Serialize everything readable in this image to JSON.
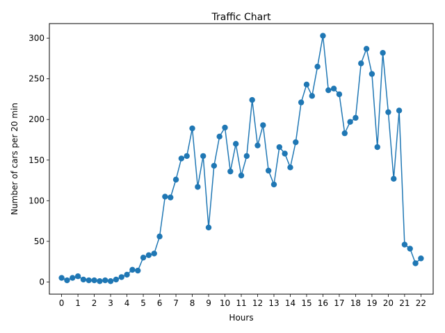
{
  "chart_data": {
    "type": "line",
    "title": "Traffic Chart",
    "xlabel": "Hours",
    "ylabel": "Number of cars per 20 min",
    "xlim": [
      -0.75,
      22.75
    ],
    "ylim": [
      -15,
      318
    ],
    "x_ticks": [
      0,
      1,
      2,
      3,
      4,
      5,
      6,
      7,
      8,
      9,
      10,
      11,
      12,
      13,
      14,
      15,
      16,
      17,
      18,
      19,
      20,
      21,
      22
    ],
    "y_ticks": [
      0,
      50,
      100,
      150,
      200,
      250,
      300
    ],
    "grid": false,
    "legend": "none",
    "marker": "circle",
    "color": "#1f77b4",
    "series": [
      {
        "x": [
          0,
          0.333,
          0.667,
          1,
          1.333,
          1.667,
          2,
          2.333,
          2.667,
          3,
          3.333,
          3.667,
          4,
          4.333,
          4.667,
          5,
          5.333,
          5.667,
          6,
          6.333,
          6.667,
          7,
          7.333,
          7.667,
          8,
          8.333,
          8.667,
          9,
          9.333,
          9.667,
          10,
          10.333,
          10.667,
          11,
          11.333,
          11.667,
          12,
          12.333,
          12.667,
          13,
          13.333,
          13.667,
          14,
          14.333,
          14.667,
          15,
          15.333,
          15.667,
          16,
          16.333,
          16.667,
          17,
          17.333,
          17.667,
          18,
          18.333,
          18.667,
          19,
          19.333,
          19.667,
          20,
          20.333,
          20.667,
          21,
          21.333,
          21.667,
          22
        ],
        "y": [
          5,
          2,
          5,
          7,
          3,
          2,
          2,
          1,
          2,
          1,
          3,
          6,
          9,
          15,
          14,
          30,
          33,
          35,
          56,
          105,
          104,
          126,
          152,
          155,
          189,
          117,
          155,
          67,
          143,
          179,
          190,
          136,
          170,
          131,
          155,
          224,
          168,
          193,
          137,
          120,
          166,
          158,
          141,
          172,
          221,
          243,
          229,
          265,
          303,
          236,
          238,
          231,
          183,
          197,
          202,
          269,
          287,
          256,
          166,
          282,
          209,
          127,
          211,
          46,
          41,
          23,
          29
        ]
      }
    ]
  }
}
